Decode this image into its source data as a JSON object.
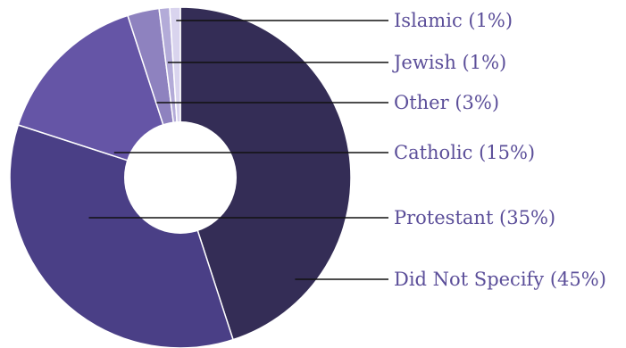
{
  "chart_data": {
    "type": "pie",
    "title": "",
    "legend": "none",
    "slices": [
      {
        "label": "Did Not Specify (45%)",
        "name": "Did Not Specify",
        "value": 45,
        "color": "#342d56"
      },
      {
        "label": "Protestant (35%)",
        "name": "Protestant",
        "value": 35,
        "color": "#4a3f86"
      },
      {
        "label": "Catholic (15%)",
        "name": "Catholic",
        "value": 15,
        "color": "#6555a6"
      },
      {
        "label": "Other (3%)",
        "name": "Other",
        "value": 3,
        "color": "#8e82bf"
      },
      {
        "label": "Jewish (1%)",
        "name": "Jewish",
        "value": 1,
        "color": "#b3abd8"
      },
      {
        "label": "Islamic (1%)",
        "name": "Islamic",
        "value": 1,
        "color": "#d9d4ee"
      }
    ],
    "label_color": "#5b4e99",
    "leader_color": "#111111"
  }
}
